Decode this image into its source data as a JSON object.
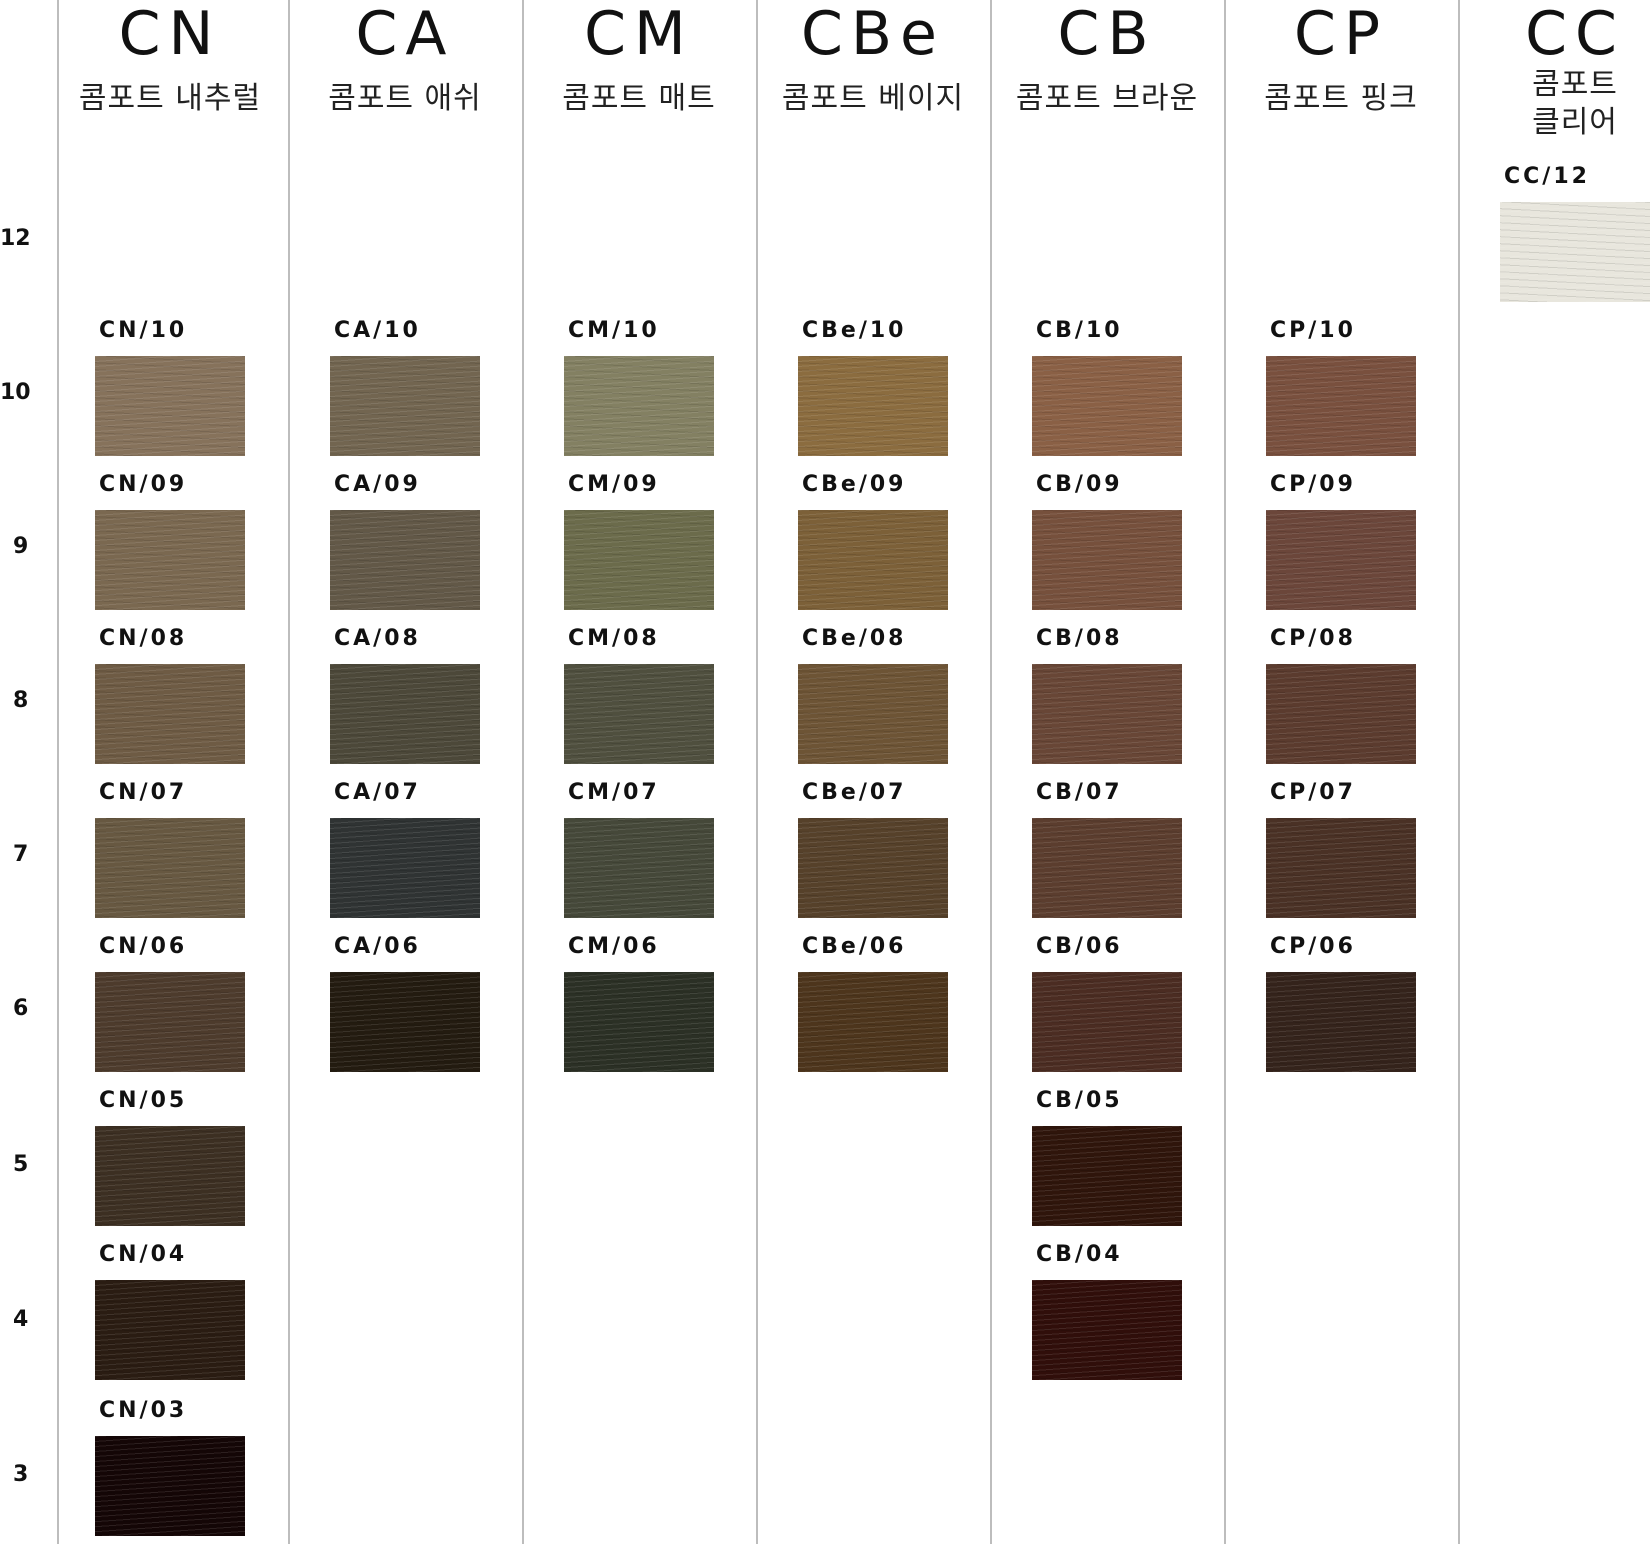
{
  "series": [
    {
      "code": "CN",
      "name": "콤포트 내추럴"
    },
    {
      "code": "CA",
      "name": "콤포트 애쉬"
    },
    {
      "code": "CM",
      "name": "콤포트 매트"
    },
    {
      "code": "CBe",
      "name": "콤포트 베이지"
    },
    {
      "code": "CB",
      "name": "콤포트 브라운"
    },
    {
      "code": "CP",
      "name": "콤포트 핑크"
    },
    {
      "code": "CC",
      "name": "콤포트\n클리어"
    }
  ],
  "levels": [
    "12",
    "10",
    "9",
    "8",
    "7",
    "6",
    "5",
    "4",
    "3"
  ],
  "swatches": [
    {
      "series": 0,
      "level": "10",
      "label": "CN/10",
      "color": "#86725b"
    },
    {
      "series": 0,
      "level": "9",
      "label": "CN/09",
      "color": "#7a6850"
    },
    {
      "series": 0,
      "level": "8",
      "label": "CN/08",
      "color": "#6e5b44"
    },
    {
      "series": 0,
      "level": "7",
      "label": "CN/07",
      "color": "#675841"
    },
    {
      "series": 0,
      "level": "6",
      "label": "CN/06",
      "color": "#4d3b2c"
    },
    {
      "series": 0,
      "level": "5",
      "label": "CN/05",
      "color": "#3c2f22"
    },
    {
      "series": 0,
      "level": "4",
      "label": "CN/04",
      "color": "#2a1c12"
    },
    {
      "series": 0,
      "level": "3",
      "label": "CN/03",
      "color": "#140606"
    },
    {
      "series": 1,
      "level": "10",
      "label": "CA/10",
      "color": "#726550"
    },
    {
      "series": 1,
      "level": "9",
      "label": "CA/09",
      "color": "#625847"
    },
    {
      "series": 1,
      "level": "8",
      "label": "CA/08",
      "color": "#4c4839"
    },
    {
      "series": 1,
      "level": "7",
      "label": "CA/07",
      "color": "#2f3333"
    },
    {
      "series": 1,
      "level": "6",
      "label": "CA/06",
      "color": "#231b10"
    },
    {
      "series": 2,
      "level": "10",
      "label": "CM/10",
      "color": "#838062"
    },
    {
      "series": 2,
      "level": "9",
      "label": "CM/09",
      "color": "#6b6b4b"
    },
    {
      "series": 2,
      "level": "8",
      "label": "CM/08",
      "color": "#4f4f3e"
    },
    {
      "series": 2,
      "level": "7",
      "label": "CM/07",
      "color": "#454839"
    },
    {
      "series": 2,
      "level": "6",
      "label": "CM/06",
      "color": "#2b3025"
    },
    {
      "series": 3,
      "level": "10",
      "label": "CBe/10",
      "color": "#8b6c3f"
    },
    {
      "series": 3,
      "level": "9",
      "label": "CBe/09",
      "color": "#7c6038"
    },
    {
      "series": 3,
      "level": "8",
      "label": "CBe/08",
      "color": "#6d5435"
    },
    {
      "series": 3,
      "level": "7",
      "label": "CBe/07",
      "color": "#56412a"
    },
    {
      "series": 3,
      "level": "6",
      "label": "CBe/06",
      "color": "#4d351c"
    },
    {
      "series": 4,
      "level": "10",
      "label": "CB/10",
      "color": "#8a6045"
    },
    {
      "series": 4,
      "level": "9",
      "label": "CB/09",
      "color": "#76503c"
    },
    {
      "series": 4,
      "level": "8",
      "label": "CB/08",
      "color": "#684636"
    },
    {
      "series": 4,
      "level": "7",
      "label": "CB/07",
      "color": "#5b3d2e"
    },
    {
      "series": 4,
      "level": "6",
      "label": "CB/06",
      "color": "#4b2c22"
    },
    {
      "series": 4,
      "level": "5",
      "label": "CB/05",
      "color": "#2f150b"
    },
    {
      "series": 4,
      "level": "4",
      "label": "CB/04",
      "color": "#300e0a"
    },
    {
      "series": 5,
      "level": "10",
      "label": "CP/10",
      "color": "#79503e"
    },
    {
      "series": 5,
      "level": "9",
      "label": "CP/09",
      "color": "#6b463a"
    },
    {
      "series": 5,
      "level": "8",
      "label": "CP/08",
      "color": "#5b3b2e"
    },
    {
      "series": 5,
      "level": "7",
      "label": "CP/07",
      "color": "#4a3125"
    },
    {
      "series": 5,
      "level": "6",
      "label": "CP/06",
      "color": "#34231b"
    },
    {
      "series": 6,
      "level": "12",
      "label": "CC/12",
      "color": "#e8e6dd"
    }
  ]
}
